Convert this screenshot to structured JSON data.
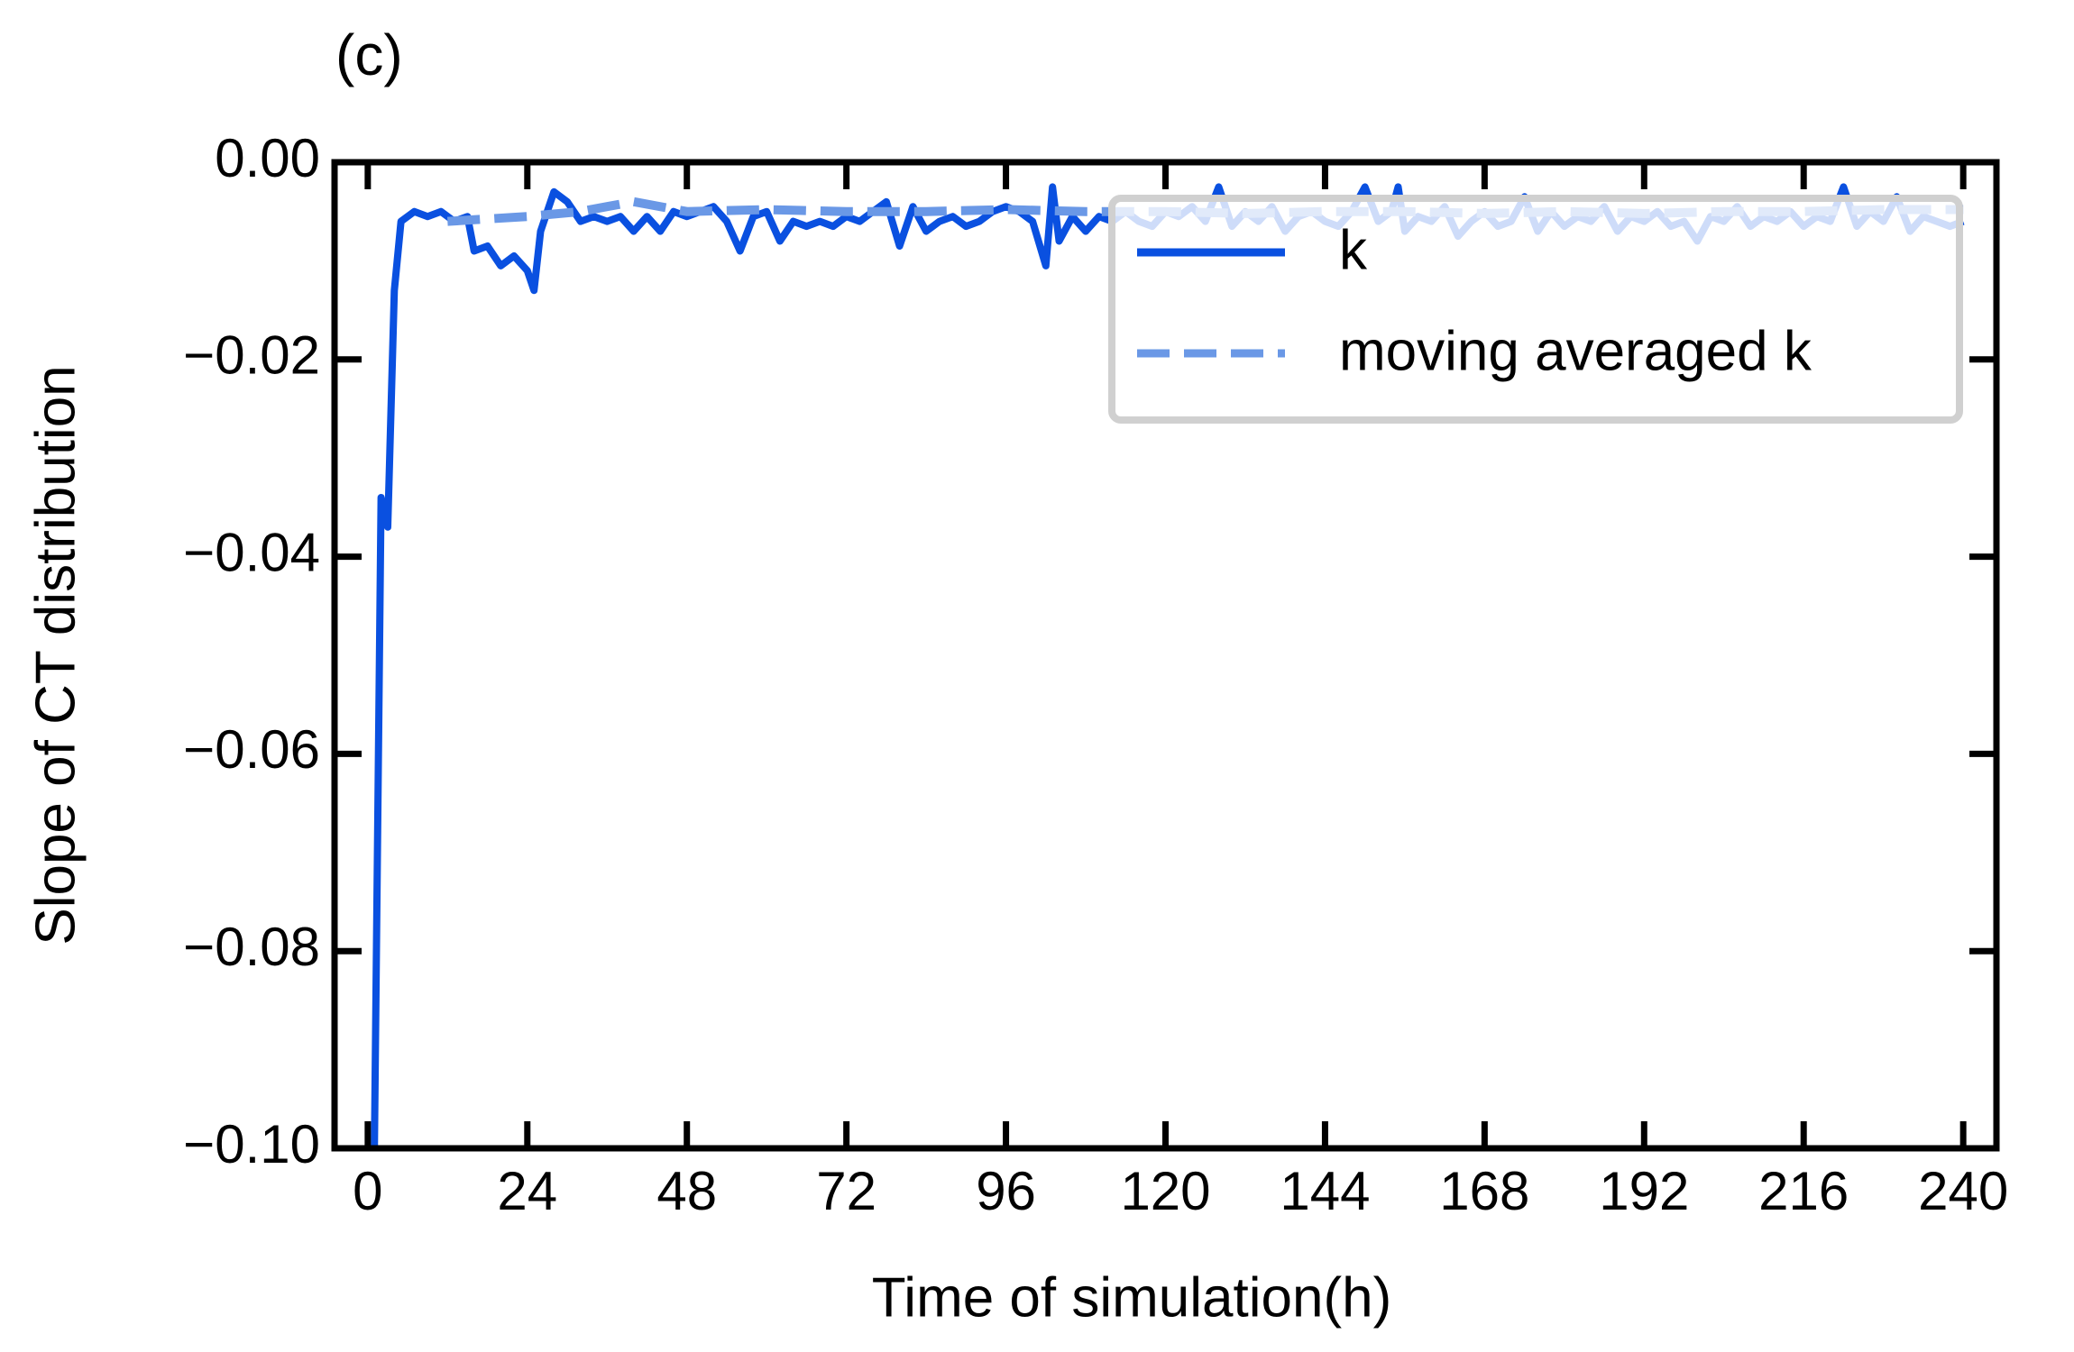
{
  "chart_data": {
    "type": "line",
    "title": "(c)",
    "x_label": "Time of simulation(h)",
    "y_label": "Slope of CT distribution",
    "xlim": [
      -5,
      245
    ],
    "ylim": [
      -0.1,
      0
    ],
    "xticks": [
      0,
      24,
      48,
      72,
      96,
      120,
      144,
      168,
      192,
      216,
      240
    ],
    "yticks": [
      {
        "value": 0,
        "label": "0.00"
      },
      {
        "value": -0.02,
        "label": "−0.02"
      },
      {
        "value": -0.04,
        "label": "−0.04"
      },
      {
        "value": -0.06,
        "label": "−0.06"
      },
      {
        "value": -0.08,
        "label": "−0.08"
      },
      {
        "value": -0.1,
        "label": "−0.10"
      }
    ],
    "legend": "upper right",
    "series": [
      {
        "name": "k",
        "color": "#0a50e0",
        "style": "solid",
        "x": [
          1,
          2,
          3,
          4,
          5,
          7,
          9,
          11,
          13,
          15,
          16,
          18,
          20,
          22,
          24,
          25,
          26,
          28,
          30,
          32,
          34,
          36,
          38,
          40,
          42,
          44,
          46,
          48,
          50,
          52,
          54,
          56,
          58,
          60,
          62,
          64,
          66,
          68,
          70,
          72,
          74,
          76,
          78,
          80,
          82,
          84,
          86,
          88,
          90,
          92,
          94,
          96,
          98,
          100,
          102,
          103,
          104,
          106,
          108,
          110,
          112,
          114,
          116,
          118,
          120,
          122,
          124,
          126,
          128,
          130,
          132,
          134,
          136,
          138,
          140,
          142,
          144,
          146,
          148,
          150,
          152,
          154,
          155,
          156,
          158,
          160,
          162,
          164,
          166,
          168,
          170,
          172,
          174,
          176,
          178,
          180,
          182,
          184,
          186,
          188,
          190,
          192,
          194,
          196,
          198,
          200,
          202,
          204,
          206,
          208,
          210,
          212,
          214,
          216,
          218,
          220,
          222,
          224,
          226,
          228,
          230,
          232,
          234,
          236,
          238,
          240
        ],
        "values": [
          -0.1,
          -0.034,
          -0.037,
          -0.013,
          -0.006,
          -0.005,
          -0.0055,
          -0.005,
          -0.006,
          -0.0055,
          -0.009,
          -0.0085,
          -0.0105,
          -0.0095,
          -0.011,
          -0.013,
          -0.007,
          -0.003,
          -0.004,
          -0.006,
          -0.0055,
          -0.006,
          -0.0055,
          -0.007,
          -0.0055,
          -0.007,
          -0.005,
          -0.0055,
          -0.005,
          -0.0045,
          -0.006,
          -0.009,
          -0.0055,
          -0.005,
          -0.008,
          -0.006,
          -0.0065,
          -0.006,
          -0.0065,
          -0.0055,
          -0.006,
          -0.005,
          -0.004,
          -0.0085,
          -0.0045,
          -0.007,
          -0.006,
          -0.0055,
          -0.0065,
          -0.006,
          -0.005,
          -0.0045,
          -0.005,
          -0.006,
          -0.0105,
          -0.0025,
          -0.008,
          -0.0055,
          -0.007,
          -0.0055,
          -0.006,
          -0.005,
          -0.006,
          -0.0065,
          -0.005,
          -0.0055,
          -0.0045,
          -0.006,
          -0.0025,
          -0.0065,
          -0.005,
          -0.006,
          -0.0045,
          -0.007,
          -0.0055,
          -0.005,
          -0.006,
          -0.0065,
          -0.005,
          -0.0025,
          -0.006,
          -0.005,
          -0.0025,
          -0.007,
          -0.0055,
          -0.006,
          -0.0045,
          -0.0075,
          -0.006,
          -0.005,
          -0.0065,
          -0.006,
          -0.0035,
          -0.007,
          -0.005,
          -0.0065,
          -0.0055,
          -0.006,
          -0.0045,
          -0.007,
          -0.0055,
          -0.006,
          -0.005,
          -0.0065,
          -0.006,
          -0.008,
          -0.0055,
          -0.006,
          -0.0045,
          -0.0065,
          -0.0055,
          -0.006,
          -0.005,
          -0.0065,
          -0.0055,
          -0.006,
          -0.0025,
          -0.0065,
          -0.005,
          -0.006,
          -0.0035,
          -0.007,
          -0.0055,
          -0.006,
          -0.0065,
          -0.006
        ]
      },
      {
        "name": "moving averaged k",
        "color": "#6a98e6",
        "style": "dashed",
        "x": [
          12,
          24,
          32,
          36,
          40,
          48,
          60,
          72,
          84,
          96,
          108,
          120,
          132,
          144,
          156,
          168,
          180,
          192,
          204,
          216,
          228,
          240
        ],
        "values": [
          -0.006,
          -0.0055,
          -0.005,
          -0.0045,
          -0.004,
          -0.005,
          -0.0048,
          -0.005,
          -0.005,
          -0.0048,
          -0.005,
          -0.005,
          -0.0052,
          -0.005,
          -0.005,
          -0.0052,
          -0.005,
          -0.0052,
          -0.005,
          -0.005,
          -0.0048,
          -0.0048
        ]
      }
    ]
  }
}
